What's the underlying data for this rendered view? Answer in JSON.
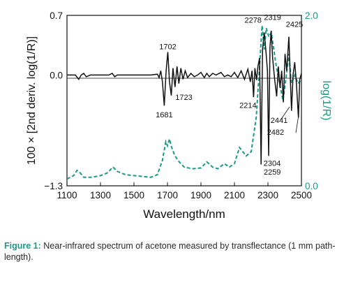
{
  "caption": {
    "label": "Figure 1:",
    "text": "Near-infrared spectrum of acetone measured by transflectance (1 mm path-length)."
  },
  "colors": {
    "deriv_line": "#111111",
    "log_line": "#1a9a86",
    "axis_right": "#1a9a86"
  },
  "chart_data": {
    "type": "line",
    "xlabel": "Wavelength/nm",
    "ylabel_left": "100 × [2nd deriv. log(1/R)]",
    "ylabel_right": "log(1/R)",
    "xlim": [
      1100,
      2500
    ],
    "ylim_left": [
      -1.3,
      0.7
    ],
    "ylim_right": [
      0.0,
      2.0
    ],
    "x_ticks": [
      "1100",
      "1300",
      "1500",
      "1700",
      "1900",
      "2100",
      "2300",
      "2500"
    ],
    "y_left_ticks": [
      "0.7",
      "0.0",
      "−1.3"
    ],
    "y_right_ticks": [
      "2.0",
      "0.0"
    ],
    "grid": false,
    "annotations": [
      {
        "text": "1702",
        "x": 1702,
        "y": 0.22
      },
      {
        "text": "1681",
        "x": 1681,
        "y": -0.38
      },
      {
        "text": "1723",
        "x": 1723,
        "y": -0.26
      },
      {
        "text": "2214",
        "x": 2214,
        "y": -0.27
      },
      {
        "text": "2278",
        "x": 2278,
        "y": 0.53
      },
      {
        "text": "2319",
        "x": 2319,
        "y": 0.55
      },
      {
        "text": "2425",
        "x": 2425,
        "y": 0.45
      },
      {
        "text": "2441",
        "x": 2441,
        "y": -0.43
      },
      {
        "text": "2482",
        "x": 2482,
        "y": -0.53
      },
      {
        "text": "2304",
        "x": 2304,
        "y": -0.97
      },
      {
        "text": "2259",
        "x": 2259,
        "y": -1.07
      }
    ],
    "series": [
      {
        "axis": "left",
        "style": "solid",
        "points": [
          [
            1100,
            0.0
          ],
          [
            1150,
            0.0
          ],
          [
            1170,
            -0.05
          ],
          [
            1185,
            0.0
          ],
          [
            1200,
            0.02
          ],
          [
            1215,
            -0.02
          ],
          [
            1240,
            0.0
          ],
          [
            1300,
            0.0
          ],
          [
            1350,
            0.0
          ],
          [
            1370,
            0.02
          ],
          [
            1385,
            -0.02
          ],
          [
            1400,
            0.0
          ],
          [
            1450,
            0.0
          ],
          [
            1500,
            0.0
          ],
          [
            1550,
            0.0
          ],
          [
            1600,
            0.0
          ],
          [
            1640,
            0.01
          ],
          [
            1650,
            -0.03
          ],
          [
            1660,
            0.05
          ],
          [
            1670,
            -0.08
          ],
          [
            1681,
            -0.36
          ],
          [
            1692,
            0.05
          ],
          [
            1702,
            0.27
          ],
          [
            1712,
            -0.08
          ],
          [
            1723,
            -0.24
          ],
          [
            1733,
            0.08
          ],
          [
            1745,
            -0.14
          ],
          [
            1757,
            0.1
          ],
          [
            1768,
            -0.1
          ],
          [
            1780,
            0.08
          ],
          [
            1793,
            -0.05
          ],
          [
            1806,
            0.05
          ],
          [
            1820,
            -0.03
          ],
          [
            1840,
            0.02
          ],
          [
            1860,
            -0.02
          ],
          [
            1880,
            0.0
          ],
          [
            1900,
            0.03
          ],
          [
            1920,
            -0.03
          ],
          [
            1935,
            0.02
          ],
          [
            1950,
            -0.02
          ],
          [
            1970,
            0.02
          ],
          [
            1990,
            0.0
          ],
          [
            2020,
            0.03
          ],
          [
            2040,
            -0.02
          ],
          [
            2060,
            0.0
          ],
          [
            2080,
            -0.02
          ],
          [
            2100,
            0.03
          ],
          [
            2120,
            -0.03
          ],
          [
            2140,
            0.05
          ],
          [
            2160,
            -0.05
          ],
          [
            2180,
            0.07
          ],
          [
            2195,
            -0.08
          ],
          [
            2205,
            0.05
          ],
          [
            2214,
            -0.26
          ],
          [
            2222,
            0.08
          ],
          [
            2232,
            -0.06
          ],
          [
            2240,
            0.1
          ],
          [
            2250,
            0.2
          ],
          [
            2259,
            -1.05
          ],
          [
            2268,
            0.3
          ],
          [
            2278,
            0.5
          ],
          [
            2288,
            0.28
          ],
          [
            2297,
            0.05
          ],
          [
            2304,
            -0.95
          ],
          [
            2312,
            0.32
          ],
          [
            2319,
            0.52
          ],
          [
            2328,
            0.2
          ],
          [
            2340,
            -0.05
          ],
          [
            2352,
            -0.25
          ],
          [
            2362,
            0.1
          ],
          [
            2372,
            -0.15
          ],
          [
            2382,
            0.05
          ],
          [
            2392,
            -0.32
          ],
          [
            2402,
            0.25
          ],
          [
            2412,
            0.05
          ],
          [
            2425,
            0.45
          ],
          [
            2433,
            0.0
          ],
          [
            2441,
            -0.42
          ],
          [
            2450,
            0.0
          ],
          [
            2460,
            0.15
          ],
          [
            2470,
            -0.1
          ],
          [
            2482,
            -0.5
          ],
          [
            2490,
            -0.05
          ],
          [
            2500,
            0.02
          ]
        ]
      },
      {
        "axis": "right",
        "style": "dashed",
        "points": [
          [
            1100,
            0.08
          ],
          [
            1140,
            0.12
          ],
          [
            1160,
            0.18
          ],
          [
            1180,
            0.15
          ],
          [
            1200,
            0.1
          ],
          [
            1250,
            0.1
          ],
          [
            1300,
            0.12
          ],
          [
            1340,
            0.15
          ],
          [
            1375,
            0.22
          ],
          [
            1400,
            0.17
          ],
          [
            1450,
            0.13
          ],
          [
            1500,
            0.12
          ],
          [
            1550,
            0.11
          ],
          [
            1600,
            0.1
          ],
          [
            1640,
            0.13
          ],
          [
            1670,
            0.3
          ],
          [
            1690,
            0.52
          ],
          [
            1700,
            0.47
          ],
          [
            1712,
            0.55
          ],
          [
            1725,
            0.45
          ],
          [
            1745,
            0.35
          ],
          [
            1770,
            0.28
          ],
          [
            1800,
            0.22
          ],
          [
            1850,
            0.2
          ],
          [
            1900,
            0.21
          ],
          [
            1935,
            0.28
          ],
          [
            1970,
            0.22
          ],
          [
            2000,
            0.2
          ],
          [
            2040,
            0.26
          ],
          [
            2070,
            0.22
          ],
          [
            2100,
            0.26
          ],
          [
            2130,
            0.45
          ],
          [
            2150,
            0.4
          ],
          [
            2170,
            0.35
          ],
          [
            2200,
            0.4
          ],
          [
            2230,
            0.8
          ],
          [
            2250,
            1.4
          ],
          [
            2265,
            1.88
          ],
          [
            2278,
            1.6
          ],
          [
            2290,
            1.85
          ],
          [
            2305,
            1.75
          ],
          [
            2320,
            1.8
          ],
          [
            2335,
            1.6
          ],
          [
            2350,
            1.4
          ],
          [
            2370,
            1.2
          ],
          [
            2390,
            1.0
          ],
          [
            2410,
            1.3
          ],
          [
            2425,
            1.55
          ],
          [
            2440,
            1.2
          ],
          [
            2460,
            1.3
          ],
          [
            2480,
            1.2
          ],
          [
            2500,
            1.25
          ]
        ]
      }
    ]
  }
}
